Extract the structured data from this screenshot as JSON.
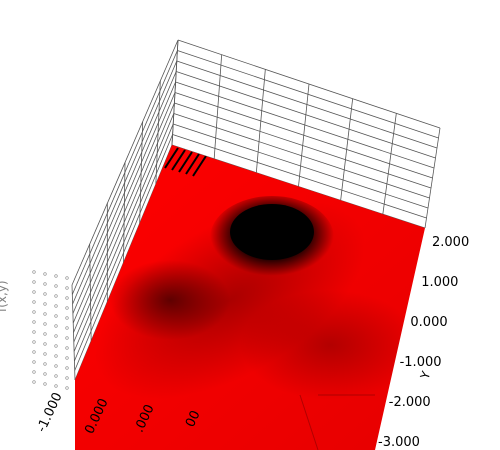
{
  "chart_data": {
    "type": "surface",
    "title": "",
    "zlabel": "f(x,y)",
    "ylabel": "Y",
    "xlabel": "",
    "y_ticks": [
      "-3.000",
      "-2.000",
      "-1.000",
      "0.000",
      "1.000",
      "2.000"
    ],
    "x_ticks": [
      "-1.000",
      "0.000",
      ".000",
      "00"
    ],
    "y_range": [
      -3,
      2
    ],
    "surface_color": "#ff0000",
    "shade_color": "#000000",
    "grid_color": "#555555",
    "grid": true,
    "peak": {
      "x": 0.5,
      "y": 1.5
    },
    "features": [
      {
        "x": 0.5,
        "y": 1.5,
        "height": 1.0
      },
      {
        "x": -0.5,
        "y": -0.5,
        "height": 0.4
      }
    ]
  }
}
